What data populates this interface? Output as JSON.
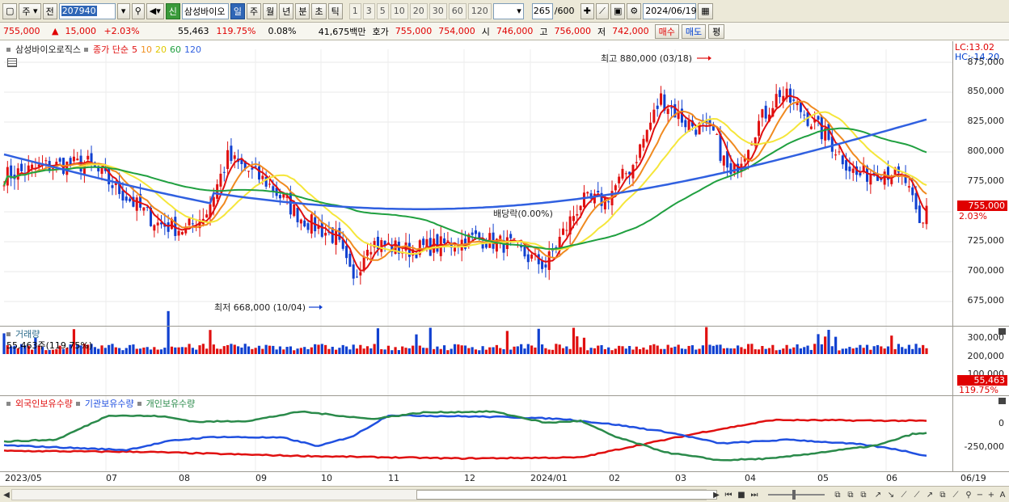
{
  "toolbar": {
    "market": "주",
    "prev": "전",
    "code": "207940",
    "name_badge": "신",
    "name": "삼성바이오",
    "periods": [
      "일",
      "주",
      "월",
      "년",
      "분",
      "초",
      "틱"
    ],
    "active_period": "일",
    "nums": [
      "1",
      "3",
      "5",
      "10",
      "20",
      "30",
      "60",
      "120"
    ],
    "count": "265",
    "count_total": "/600",
    "date": "2024/06/19"
  },
  "quote": {
    "price": "755,000",
    "change": "15,000",
    "change_pct": "+2.03%",
    "volume": "55,463",
    "vol_ratio": "119.75%",
    "turnover_pct": "0.08%",
    "amount": "41,675백만",
    "hoga_label": "호가",
    "ask": "755,000",
    "bid": "754,000",
    "open_label": "시",
    "open": "746,000",
    "high_label": "고",
    "high": "756,000",
    "low_label": "저",
    "low": "742,000",
    "buy_label": "매수",
    "sell_label": "매도",
    "eval_label": "평"
  },
  "price_panel": {
    "title": "삼성바이오로직스",
    "ma_label": "종가 단순",
    "ma_periods": [
      "5",
      "10",
      "20",
      "60",
      "120"
    ],
    "ma_colors": [
      "#e01010",
      "#f09020",
      "#f0e030",
      "#20a040",
      "#3060e0"
    ],
    "lc": "LC:13.02",
    "hc": "HC:-14.20",
    "y_ticks": [
      "875,000",
      "850,000",
      "825,000",
      "800,000",
      "775,000",
      "750,000",
      "725,000",
      "700,000",
      "675,000"
    ],
    "current_price": "755,000",
    "current_pct": "2.03%",
    "max_note": "최고 880,000 (03/18)",
    "min_note": "최저 668,000 (10/04)",
    "dividend_note": "배당락(0.00%)"
  },
  "volume_panel": {
    "title": "거래량",
    "value": "55,463주(119.75%)",
    "y_ticks": [
      "300,000",
      "200,000",
      "100,000"
    ],
    "current": "55,463",
    "current_pct": "119.75%"
  },
  "holding_panel": {
    "series": [
      {
        "name": "외국인보유수량",
        "color": "#e01010"
      },
      {
        "name": "기관보유수량",
        "color": "#2050e0"
      },
      {
        "name": "개인보유수량",
        "color": "#2a8a4a"
      }
    ],
    "y_ticks": [
      "0",
      "-250,000"
    ]
  },
  "date_axis": [
    "2023/05",
    "07",
    "08",
    "09",
    "10",
    "11",
    "12",
    "2024/01",
    "02",
    "03",
    "04",
    "05",
    "06",
    "06/19"
  ]
}
